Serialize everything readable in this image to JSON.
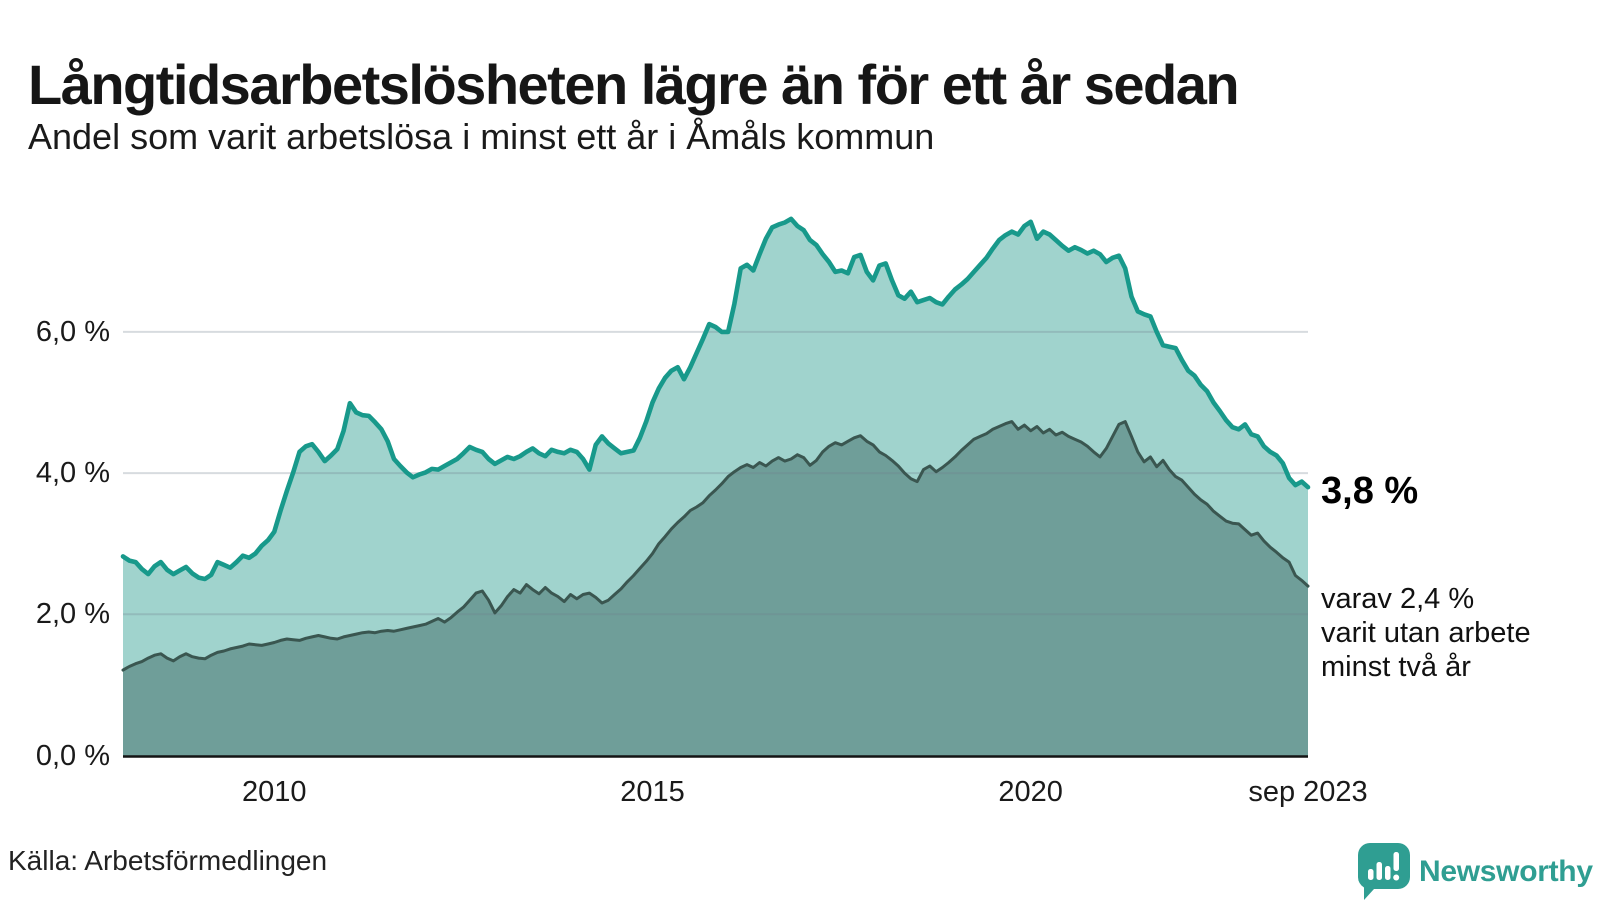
{
  "header": {
    "title": "Långtidsarbetslösheten lägre än för ett år sedan",
    "subtitle": "Andel som varit arbetslösa i minst ett år i Åmåls kommun"
  },
  "annotations": {
    "end_value_1yr": "3,8 %",
    "end_note_2yr": "varav 2,4 %\nvarit utan arbete\nminst två år"
  },
  "footer": {
    "source": "Källa: Arbetsförmedlingen",
    "brand": "Newsworthy"
  },
  "colors": {
    "line_1yr": "#18998b",
    "fill_1yr": "#a0d3cd",
    "line_2yr": "#3a5650",
    "fill_2yr": "#6f9e99",
    "gridline": "rgba(110,125,140,0.28)",
    "axis": "#141414",
    "brand_teal": "#2f9e92"
  },
  "chart_data": {
    "type": "area",
    "title": "Långtidsarbetslösheten lägre än för ett år sedan",
    "subtitle": "Andel som varit arbetslösa i minst ett år i Åmåls kommun",
    "unit": "%",
    "frequency": "monthly",
    "x_start": "2008-01",
    "x_end": "2023-09",
    "ylim": [
      0,
      7.8
    ],
    "grid": "horizontal",
    "y_ticks": [
      {
        "label": "0,0 %",
        "value": 0
      },
      {
        "label": "2,0 %",
        "value": 2
      },
      {
        "label": "4,0 %",
        "value": 4
      },
      {
        "label": "6,0 %",
        "value": 6
      }
    ],
    "x_ticks": [
      {
        "label": "2010",
        "month_index": 24
      },
      {
        "label": "2015",
        "month_index": 84
      },
      {
        "label": "2020",
        "month_index": 144
      },
      {
        "label": "sep 2023",
        "month_index": 188
      }
    ],
    "series": [
      {
        "name": "Arbetslösa minst ett år",
        "end_label": "3,8 %",
        "values": [
          2.82,
          2.76,
          2.74,
          2.64,
          2.57,
          2.68,
          2.74,
          2.63,
          2.57,
          2.62,
          2.67,
          2.58,
          2.52,
          2.5,
          2.56,
          2.74,
          2.7,
          2.66,
          2.74,
          2.83,
          2.8,
          2.86,
          2.97,
          3.05,
          3.17,
          3.47,
          3.75,
          4.01,
          4.3,
          4.38,
          4.41,
          4.3,
          4.17,
          4.25,
          4.34,
          4.6,
          4.99,
          4.86,
          4.82,
          4.81,
          4.72,
          4.62,
          4.45,
          4.2,
          4.1,
          4.01,
          3.94,
          3.98,
          4.01,
          4.06,
          4.05,
          4.1,
          4.15,
          4.2,
          4.28,
          4.37,
          4.33,
          4.3,
          4.2,
          4.13,
          4.18,
          4.23,
          4.2,
          4.24,
          4.3,
          4.35,
          4.28,
          4.24,
          4.33,
          4.3,
          4.28,
          4.33,
          4.3,
          4.2,
          4.05,
          4.4,
          4.52,
          4.42,
          4.35,
          4.28,
          4.3,
          4.32,
          4.5,
          4.73,
          5.0,
          5.2,
          5.35,
          5.45,
          5.5,
          5.33,
          5.5,
          5.7,
          5.9,
          6.11,
          6.07,
          6.0,
          6.0,
          6.4,
          6.9,
          6.95,
          6.87,
          7.1,
          7.32,
          7.48,
          7.52,
          7.55,
          7.6,
          7.5,
          7.44,
          7.3,
          7.23,
          7.1,
          6.99,
          6.85,
          6.87,
          6.83,
          7.06,
          7.09,
          6.85,
          6.73,
          6.94,
          6.97,
          6.73,
          6.52,
          6.47,
          6.57,
          6.42,
          6.45,
          6.48,
          6.42,
          6.39,
          6.5,
          6.6,
          6.67,
          6.75,
          6.85,
          6.95,
          7.05,
          7.18,
          7.3,
          7.37,
          7.42,
          7.38,
          7.5,
          7.56,
          7.32,
          7.42,
          7.38,
          7.3,
          7.22,
          7.15,
          7.2,
          7.16,
          7.11,
          7.15,
          7.1,
          6.99,
          7.05,
          7.08,
          6.9,
          6.5,
          6.29,
          6.25,
          6.22,
          6.0,
          5.81,
          5.79,
          5.77,
          5.6,
          5.45,
          5.38,
          5.25,
          5.16,
          5.0,
          4.88,
          4.75,
          4.65,
          4.62,
          4.69,
          4.55,
          4.52,
          4.38,
          4.3,
          4.25,
          4.14,
          3.93,
          3.83,
          3.88,
          3.8
        ]
      },
      {
        "name": "Varav utan arbete minst två år",
        "end_label": "2,4 %",
        "values": [
          1.21,
          1.26,
          1.3,
          1.33,
          1.38,
          1.42,
          1.44,
          1.38,
          1.34,
          1.4,
          1.44,
          1.4,
          1.38,
          1.37,
          1.42,
          1.46,
          1.48,
          1.51,
          1.53,
          1.55,
          1.58,
          1.57,
          1.56,
          1.58,
          1.6,
          1.63,
          1.65,
          1.64,
          1.63,
          1.66,
          1.68,
          1.7,
          1.68,
          1.66,
          1.65,
          1.68,
          1.7,
          1.72,
          1.74,
          1.75,
          1.74,
          1.76,
          1.77,
          1.76,
          1.78,
          1.8,
          1.82,
          1.84,
          1.86,
          1.9,
          1.94,
          1.89,
          1.95,
          2.03,
          2.1,
          2.2,
          2.3,
          2.33,
          2.2,
          2.02,
          2.12,
          2.25,
          2.35,
          2.3,
          2.42,
          2.35,
          2.29,
          2.38,
          2.3,
          2.25,
          2.18,
          2.28,
          2.22,
          2.28,
          2.3,
          2.24,
          2.16,
          2.2,
          2.28,
          2.36,
          2.46,
          2.55,
          2.65,
          2.75,
          2.86,
          3.0,
          3.1,
          3.21,
          3.3,
          3.38,
          3.47,
          3.52,
          3.58,
          3.68,
          3.76,
          3.85,
          3.95,
          4.02,
          4.08,
          4.12,
          4.08,
          4.15,
          4.1,
          4.17,
          4.22,
          4.17,
          4.2,
          4.26,
          4.22,
          4.11,
          4.18,
          4.3,
          4.38,
          4.43,
          4.4,
          4.45,
          4.5,
          4.53,
          4.45,
          4.4,
          4.3,
          4.25,
          4.18,
          4.1,
          4.0,
          3.92,
          3.88,
          4.05,
          4.1,
          4.02,
          4.08,
          4.15,
          4.23,
          4.32,
          4.4,
          4.48,
          4.52,
          4.56,
          4.62,
          4.66,
          4.7,
          4.73,
          4.62,
          4.68,
          4.6,
          4.66,
          4.57,
          4.62,
          4.54,
          4.58,
          4.52,
          4.48,
          4.44,
          4.38,
          4.3,
          4.23,
          4.35,
          4.52,
          4.69,
          4.73,
          4.52,
          4.3,
          4.16,
          4.23,
          4.09,
          4.18,
          4.05,
          3.95,
          3.9,
          3.8,
          3.7,
          3.62,
          3.56,
          3.46,
          3.39,
          3.32,
          3.29,
          3.28,
          3.2,
          3.12,
          3.15,
          3.04,
          2.95,
          2.88,
          2.8,
          2.74,
          2.55,
          2.48,
          2.4
        ]
      }
    ]
  }
}
